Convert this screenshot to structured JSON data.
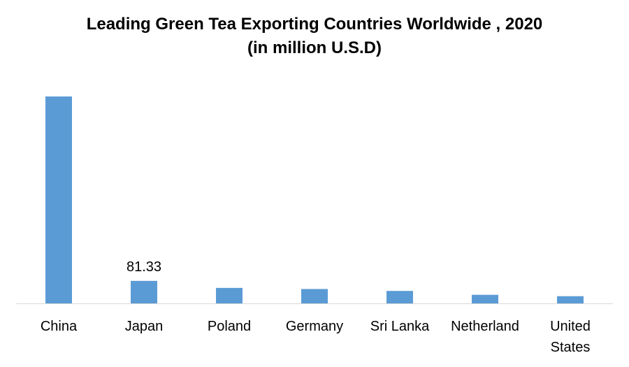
{
  "chart_data": {
    "type": "bar",
    "title": "Leading Green Tea Exporting Countries Worldwide , 2020",
    "subtitle": "(in million U.S.D)",
    "categories": [
      "China",
      "Japan",
      "Poland",
      "Germany",
      "Sri Lanka",
      "Netherland",
      "United States"
    ],
    "values": [
      748,
      81.33,
      56,
      52,
      45,
      31,
      26
    ],
    "data_labels": [
      null,
      "81.33",
      null,
      null,
      null,
      null,
      null
    ],
    "bar_color": "#5b9bd5",
    "axis_color": "#d9d9d9",
    "ylim": [
      0,
      800
    ],
    "grid": false,
    "legend": "none"
  }
}
